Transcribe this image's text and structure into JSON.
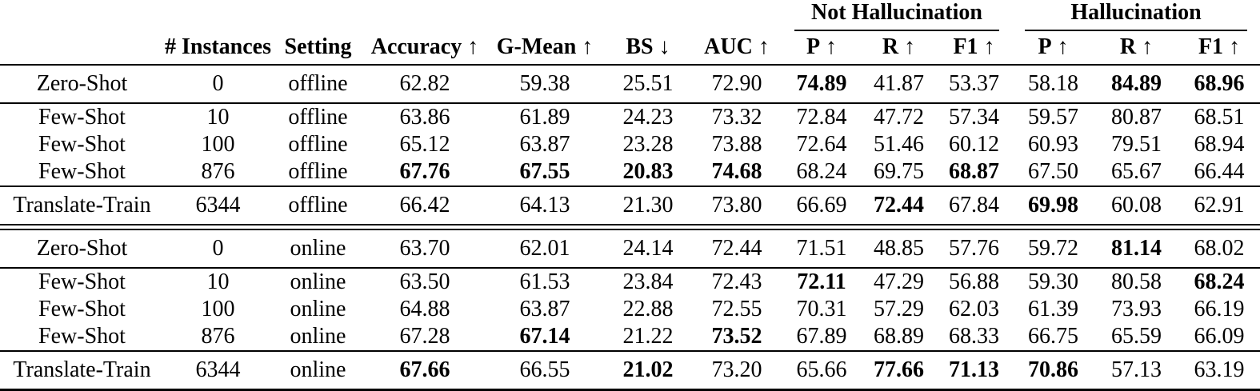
{
  "table": {
    "group_headers": [
      "Not Hallucination",
      "Hallucination"
    ],
    "columns": [
      {
        "label": "",
        "arrow": ""
      },
      {
        "label": "# Instances",
        "arrow": ""
      },
      {
        "label": "Setting",
        "arrow": ""
      },
      {
        "label": "Accuracy",
        "arrow": "↑"
      },
      {
        "label": "G-Mean",
        "arrow": "↑"
      },
      {
        "label": "BS",
        "arrow": "↓"
      },
      {
        "label": "AUC",
        "arrow": "↑"
      },
      {
        "label": "P",
        "arrow": "↑"
      },
      {
        "label": "R",
        "arrow": "↑"
      },
      {
        "label": "F1",
        "arrow": "↑"
      },
      {
        "label": "P",
        "arrow": "↑"
      },
      {
        "label": "R",
        "arrow": "↑"
      },
      {
        "label": "F1",
        "arrow": "↑"
      }
    ],
    "halves": [
      {
        "groups": [
          [
            {
              "cells": [
                "Zero-Shot",
                "0",
                "offline",
                "62.82",
                "59.38",
                "25.51",
                "72.90",
                "74.89",
                "41.87",
                "53.37",
                "58.18",
                "84.89",
                "68.96"
              ],
              "bold": [
                7,
                11,
                12
              ]
            }
          ],
          [
            {
              "cells": [
                "Few-Shot",
                "10",
                "offline",
                "63.86",
                "61.89",
                "24.23",
                "73.32",
                "72.84",
                "47.72",
                "57.34",
                "59.57",
                "80.87",
                "68.51"
              ],
              "bold": []
            },
            {
              "cells": [
                "Few-Shot",
                "100",
                "offline",
                "65.12",
                "63.87",
                "23.28",
                "73.88",
                "72.64",
                "51.46",
                "60.12",
                "60.93",
                "79.51",
                "68.94"
              ],
              "bold": []
            },
            {
              "cells": [
                "Few-Shot",
                "876",
                "offline",
                "67.76",
                "67.55",
                "20.83",
                "74.68",
                "68.24",
                "69.75",
                "68.87",
                "67.50",
                "65.67",
                "66.44"
              ],
              "bold": [
                3,
                4,
                5,
                6,
                9
              ]
            }
          ],
          [
            {
              "cells": [
                "Translate-Train",
                "6344",
                "offline",
                "66.42",
                "64.13",
                "21.30",
                "73.80",
                "66.69",
                "72.44",
                "67.84",
                "69.98",
                "60.08",
                "62.91"
              ],
              "bold": [
                8,
                10
              ]
            }
          ]
        ]
      },
      {
        "groups": [
          [
            {
              "cells": [
                "Zero-Shot",
                "0",
                "online",
                "63.70",
                "62.01",
                "24.14",
                "72.44",
                "71.51",
                "48.85",
                "57.76",
                "59.72",
                "81.14",
                "68.02"
              ],
              "bold": [
                11
              ]
            }
          ],
          [
            {
              "cells": [
                "Few-Shot",
                "10",
                "online",
                "63.50",
                "61.53",
                "23.84",
                "72.43",
                "72.11",
                "47.29",
                "56.88",
                "59.30",
                "80.58",
                "68.24"
              ],
              "bold": [
                7,
                12
              ]
            },
            {
              "cells": [
                "Few-Shot",
                "100",
                "online",
                "64.88",
                "63.87",
                "22.88",
                "72.55",
                "70.31",
                "57.29",
                "62.03",
                "61.39",
                "73.93",
                "66.19"
              ],
              "bold": []
            },
            {
              "cells": [
                "Few-Shot",
                "876",
                "online",
                "67.28",
                "67.14",
                "21.22",
                "73.52",
                "67.89",
                "68.89",
                "68.33",
                "66.75",
                "65.59",
                "66.09"
              ],
              "bold": [
                4,
                6
              ]
            }
          ],
          [
            {
              "cells": [
                "Translate-Train",
                "6344",
                "online",
                "67.66",
                "66.55",
                "21.02",
                "73.20",
                "65.66",
                "77.66",
                "71.13",
                "70.86",
                "57.13",
                "63.19"
              ],
              "bold": [
                3,
                5,
                8,
                9,
                10
              ]
            }
          ]
        ]
      }
    ]
  },
  "colors": {
    "text": "#000000",
    "rule": "#000000",
    "background": "#ffffff"
  }
}
